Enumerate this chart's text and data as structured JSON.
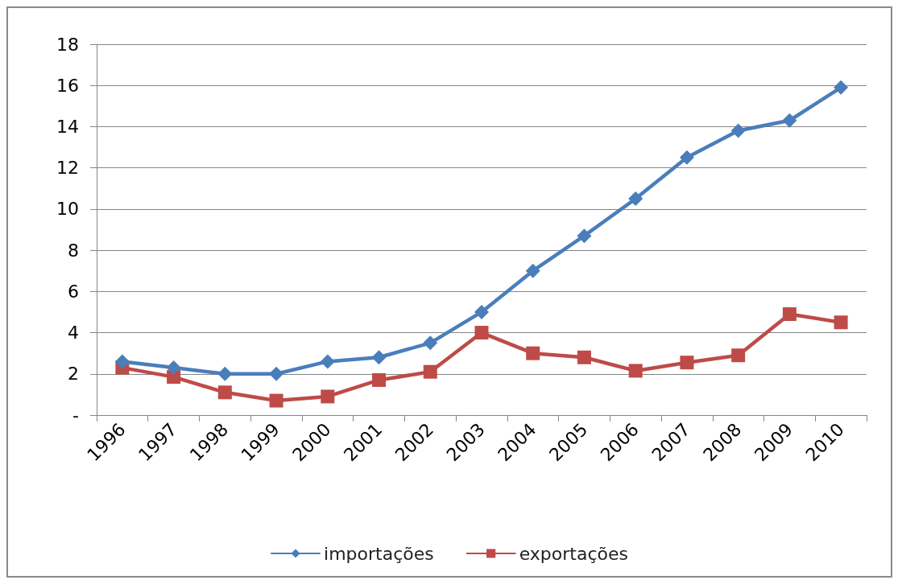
{
  "chart_data": {
    "type": "line",
    "categories": [
      "1996",
      "1997",
      "1998",
      "1999",
      "2000",
      "2001",
      "2002",
      "2003",
      "2004",
      "2005",
      "2006",
      "2007",
      "2008",
      "2009",
      "2010"
    ],
    "series": [
      {
        "name": "importações",
        "color": "#4a7ebb",
        "marker": "diamond",
        "values": [
          2.6,
          2.3,
          2.0,
          2.0,
          2.6,
          2.8,
          3.5,
          5.0,
          7.0,
          8.7,
          10.5,
          12.5,
          13.8,
          14.3,
          15.9
        ]
      },
      {
        "name": "exportações",
        "color": "#be4b48",
        "marker": "square",
        "values": [
          2.3,
          1.85,
          1.1,
          0.7,
          0.9,
          1.7,
          2.1,
          4.0,
          3.0,
          2.8,
          2.15,
          2.55,
          2.9,
          4.9,
          4.5
        ]
      }
    ],
    "ylim": [
      0,
      18
    ],
    "yticks": [
      {
        "value": 0,
        "label": "-"
      },
      2,
      4,
      6,
      8,
      10,
      12,
      14,
      16,
      18
    ],
    "grid": "y",
    "legend": "bottom",
    "line_style": "solid"
  }
}
